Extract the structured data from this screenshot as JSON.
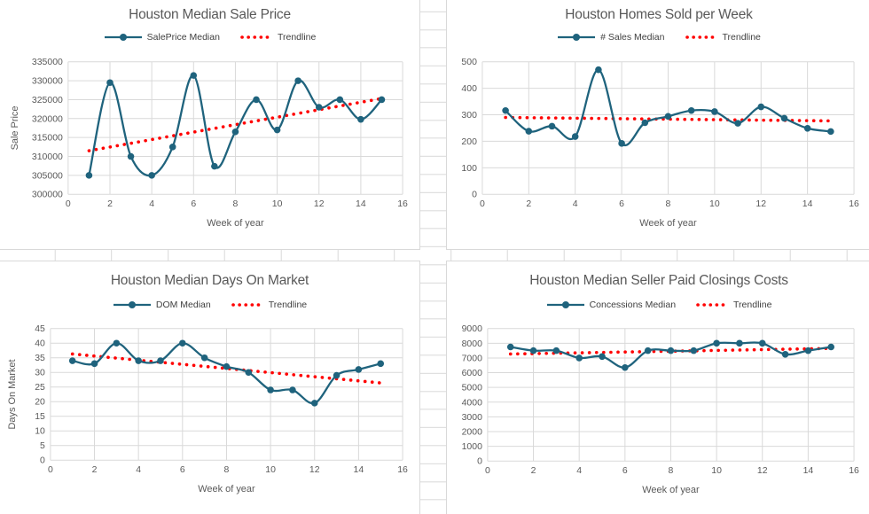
{
  "app": {
    "name": "spreadsheet-with-charts",
    "sheet_grid_visible": true
  },
  "colors": {
    "series_line": "#1F637D",
    "trendline": "#FF0000",
    "chart_gridline": "#D9D9D9",
    "sheet_gridline": "#D9D9D9",
    "text": "#595959",
    "legend_text": "#404040",
    "background": "#FFFFFF"
  },
  "chart_data": [
    {
      "type": "line",
      "title": "Houston Median Sale Price",
      "xlabel": "Week of year",
      "ylabel": "Sale Price",
      "xlim": [
        0,
        16
      ],
      "xtick_step": 2,
      "ylim": [
        300000,
        335000
      ],
      "ytick_step": 5000,
      "grid": true,
      "legend_position": "top",
      "smooth": true,
      "series": [
        {
          "name": "SalePrice Median",
          "x": [
            1,
            2,
            3,
            4,
            5,
            6,
            7,
            8,
            9,
            10,
            11,
            12,
            13,
            14,
            15
          ],
          "values": [
            305000,
            329500,
            310000,
            305000,
            312500,
            331400,
            307400,
            316500,
            325000,
            317000,
            330000,
            323000,
            325000,
            319800,
            325000
          ]
        }
      ],
      "trendline": {
        "name": "Trendline",
        "x_start": 1,
        "y_start": 311500,
        "x_end": 15,
        "y_end": 325300
      }
    },
    {
      "type": "line",
      "title": "Houston Homes Sold per Week",
      "xlabel": "Week of year",
      "ylabel": "",
      "xlim": [
        0,
        16
      ],
      "xtick_step": 2,
      "ylim": [
        0,
        500
      ],
      "ytick_step": 100,
      "grid": true,
      "legend_position": "top",
      "smooth": true,
      "series": [
        {
          "name": "# Sales Median",
          "x": [
            1,
            2,
            3,
            4,
            5,
            6,
            7,
            8,
            9,
            10,
            11,
            12,
            13,
            14,
            15
          ],
          "values": [
            316,
            238,
            257,
            218,
            470,
            192,
            270,
            294,
            316,
            312,
            268,
            330,
            287,
            249,
            237
          ]
        }
      ],
      "trendline": {
        "name": "Trendline",
        "x_start": 1,
        "y_start": 290,
        "x_end": 15,
        "y_end": 277
      }
    },
    {
      "type": "line",
      "title": "Houston Median Days On Market",
      "xlabel": "Week of year",
      "ylabel": "Days On Market",
      "xlim": [
        0,
        16
      ],
      "xtick_step": 2,
      "ylim": [
        0,
        45
      ],
      "ytick_step": 5,
      "grid": true,
      "legend_position": "top",
      "smooth": true,
      "series": [
        {
          "name": "DOM Median",
          "x": [
            1,
            2,
            3,
            4,
            5,
            6,
            7,
            8,
            9,
            10,
            11,
            12,
            13,
            14,
            15
          ],
          "values": [
            34,
            33,
            40,
            34,
            34,
            40,
            35,
            32,
            30,
            24,
            24,
            19.5,
            29,
            31,
            33
          ]
        }
      ],
      "trendline": {
        "name": "Trendline",
        "x_start": 1,
        "y_start": 36.3,
        "x_end": 15,
        "y_end": 26.4
      }
    },
    {
      "type": "line",
      "title": "Houston Median Seller Paid Closings Costs",
      "xlabel": "Week of year",
      "ylabel": "",
      "xlim": [
        0,
        16
      ],
      "xtick_step": 2,
      "ylim": [
        0,
        9000
      ],
      "ytick_step": 1000,
      "grid": true,
      "legend_position": "top",
      "smooth": true,
      "series": [
        {
          "name": "Concessions Median",
          "x": [
            1,
            2,
            3,
            4,
            5,
            6,
            7,
            8,
            9,
            10,
            11,
            12,
            13,
            14,
            15
          ],
          "values": [
            7750,
            7500,
            7500,
            7000,
            7100,
            6350,
            7500,
            7500,
            7500,
            8000,
            8000,
            8000,
            7250,
            7500,
            7750
          ]
        }
      ],
      "trendline": {
        "name": "Trendline",
        "x_start": 1,
        "y_start": 7270,
        "x_end": 15,
        "y_end": 7650
      }
    }
  ]
}
